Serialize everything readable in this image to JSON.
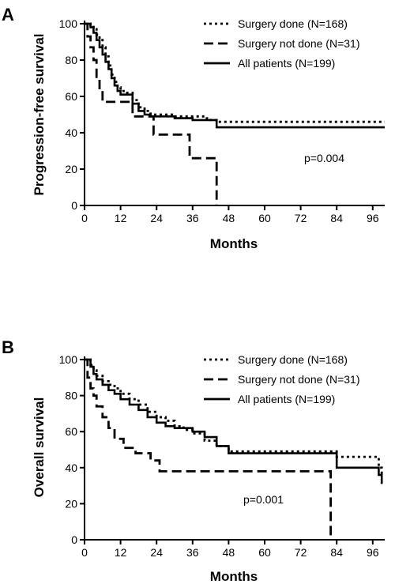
{
  "chart_data": [
    {
      "type": "line",
      "panel": "A",
      "xlabel": "Months",
      "ylabel": "Progression-free survival",
      "xlim": [
        0,
        100
      ],
      "ylim": [
        0,
        100
      ],
      "xticks": [
        "0",
        "12",
        "24",
        "36",
        "48",
        "60",
        "72",
        "84",
        "96"
      ],
      "yticks": [
        "0",
        "20",
        "40",
        "60",
        "80",
        "100"
      ],
      "legend_position": "top-right",
      "annotation": "p=0.004",
      "series": [
        {
          "name": "Surgery done (N=168)",
          "line_style": "dotted",
          "x": [
            0,
            2,
            3,
            4,
            5,
            6,
            7,
            8,
            9,
            10,
            11,
            12,
            13,
            15,
            16,
            18,
            20,
            22,
            24,
            30,
            36,
            40,
            42,
            44,
            100
          ],
          "y": [
            100,
            99,
            97,
            94,
            91,
            87,
            82,
            77,
            72,
            68,
            65,
            63,
            62,
            62,
            58,
            54,
            52,
            50,
            50,
            49,
            49,
            48,
            47,
            46,
            46
          ]
        },
        {
          "name": "Surgery not done (N=31)",
          "line_style": "dashed",
          "x": [
            0,
            1,
            2,
            3,
            4,
            5,
            6,
            16,
            23,
            35,
            44,
            44
          ],
          "y": [
            100,
            93,
            87,
            80,
            70,
            63,
            57,
            49,
            39,
            26,
            26,
            0
          ]
        },
        {
          "name": "All patients (N=199)",
          "line_style": "solid",
          "x": [
            0,
            2,
            3,
            4,
            5,
            6,
            7,
            8,
            9,
            10,
            11,
            12,
            14,
            16,
            18,
            20,
            22,
            24,
            30,
            36,
            44,
            100
          ],
          "y": [
            100,
            98,
            95,
            91,
            87,
            83,
            79,
            75,
            70,
            66,
            63,
            61,
            61,
            56,
            52,
            50,
            49,
            49,
            48,
            47,
            43,
            43
          ]
        }
      ]
    },
    {
      "type": "line",
      "panel": "B",
      "xlabel": "Months",
      "ylabel": "Overall survival",
      "xlim": [
        0,
        100
      ],
      "ylim": [
        0,
        100
      ],
      "xticks": [
        "0",
        "12",
        "24",
        "36",
        "48",
        "60",
        "72",
        "84",
        "96"
      ],
      "yticks": [
        "0",
        "20",
        "40",
        "60",
        "80",
        "100"
      ],
      "legend_position": "top-right",
      "annotation": "p=0.001",
      "series": [
        {
          "name": "Surgery done (N=168)",
          "line_style": "dotted",
          "x": [
            0,
            2,
            3,
            4,
            6,
            8,
            10,
            12,
            15,
            18,
            21,
            24,
            27,
            30,
            33,
            36,
            40,
            44,
            48,
            60,
            72,
            82,
            84,
            96,
            98,
            99
          ],
          "y": [
            100,
            97,
            94,
            91,
            88,
            86,
            84,
            81,
            78,
            75,
            71,
            68,
            66,
            63,
            61,
            59,
            55,
            52,
            49,
            49,
            49,
            49,
            46,
            46,
            40,
            36
          ]
        },
        {
          "name": "Surgery not done (N=31)",
          "line_style": "dashed",
          "x": [
            0,
            1,
            2,
            3,
            4,
            6,
            8,
            10,
            13,
            17,
            22,
            25,
            82,
            82
          ],
          "y": [
            100,
            90,
            84,
            80,
            74,
            68,
            62,
            56,
            51,
            48,
            44,
            38,
            38,
            0
          ]
        },
        {
          "name": "All patients (N=199)",
          "line_style": "solid",
          "x": [
            0,
            2,
            3,
            4,
            6,
            8,
            10,
            12,
            15,
            18,
            21,
            24,
            27,
            30,
            36,
            40,
            44,
            48,
            82,
            84,
            96,
            98,
            99
          ],
          "y": [
            100,
            96,
            92,
            89,
            86,
            83,
            81,
            78,
            75,
            72,
            68,
            65,
            63,
            62,
            60,
            57,
            52,
            48,
            48,
            40,
            40,
            36,
            31
          ]
        }
      ]
    }
  ]
}
